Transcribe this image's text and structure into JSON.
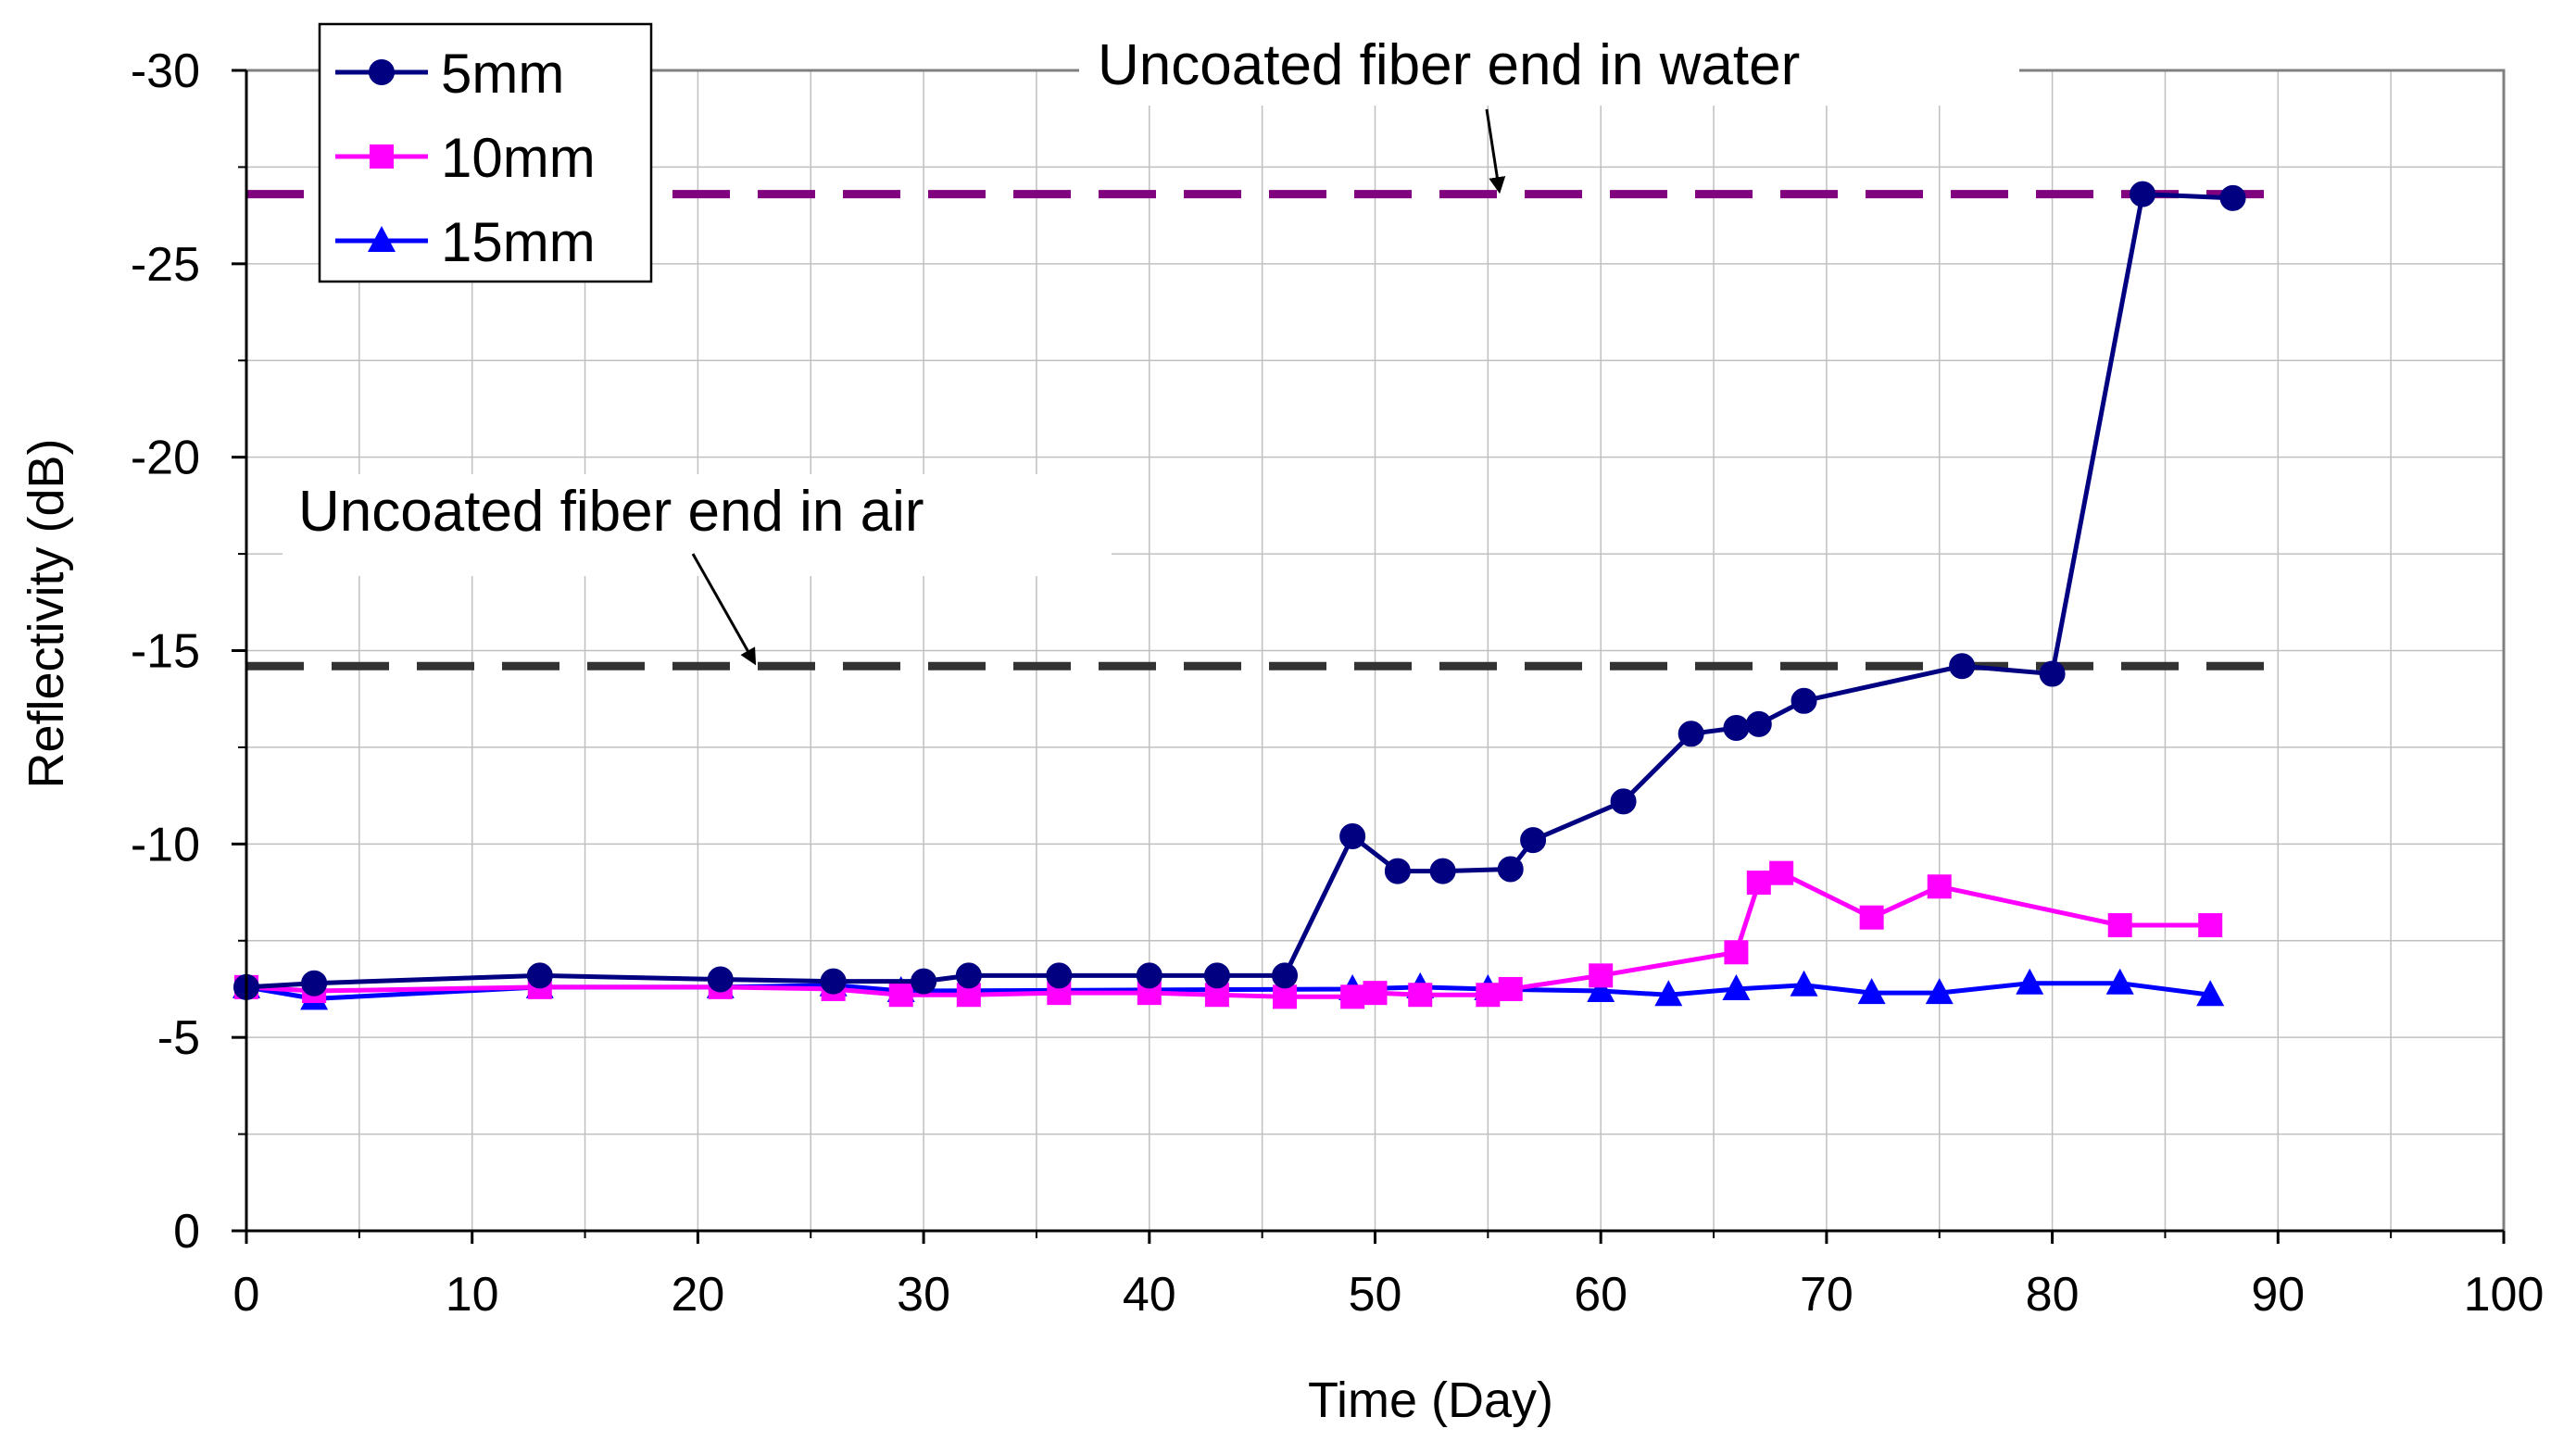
{
  "chart_data": {
    "type": "line",
    "title": "",
    "xlabel": "Time (Day)",
    "ylabel": "Reflectivity (dB)",
    "xlim": [
      0,
      100
    ],
    "ylim": [
      0,
      -30
    ],
    "y_axis_reversed": true,
    "grid": true,
    "legend_placement": "top-left",
    "x_ticks": [
      "0",
      "10",
      "20",
      "30",
      "40",
      "50",
      "60",
      "70",
      "80",
      "90",
      "100"
    ],
    "y_ticks": [
      "0",
      "-5",
      "-10",
      "-15",
      "-20",
      "-25",
      "-30"
    ],
    "series": [
      {
        "name": "5mm",
        "color": "#000080",
        "marker": "circle",
        "x": [
          0,
          3,
          13,
          21,
          26,
          30,
          32,
          36,
          40,
          43,
          46,
          49,
          51,
          53,
          56,
          57,
          61,
          64,
          66,
          67,
          69,
          76,
          80,
          84,
          88
        ],
        "y": [
          -6.3,
          -6.4,
          -6.6,
          -6.5,
          -6.45,
          -6.45,
          -6.6,
          -6.6,
          -6.6,
          -6.6,
          -6.6,
          -10.2,
          -9.3,
          -9.3,
          -9.35,
          -10.1,
          -11.1,
          -12.85,
          -13.0,
          -13.1,
          -13.7,
          -14.6,
          -14.4,
          -26.8,
          -26.7
        ]
      },
      {
        "name": "10mm",
        "color": "#ff00ff",
        "marker": "square",
        "x": [
          0,
          3,
          13,
          21,
          26,
          29,
          32,
          36,
          40,
          43,
          46,
          49,
          50,
          52,
          55,
          56,
          60,
          66,
          67,
          68,
          72,
          75,
          83,
          87
        ],
        "y": [
          -6.3,
          -6.2,
          -6.3,
          -6.3,
          -6.25,
          -6.1,
          -6.1,
          -6.15,
          -6.15,
          -6.1,
          -6.05,
          -6.05,
          -6.15,
          -6.1,
          -6.1,
          -6.25,
          -6.6,
          -7.2,
          -9.0,
          -9.25,
          -8.1,
          -8.9,
          -7.9,
          -7.9
        ]
      },
      {
        "name": "15mm",
        "color": "#0000ff",
        "marker": "triangle",
        "x": [
          0,
          3,
          13,
          21,
          26,
          29,
          49,
          52,
          55,
          60,
          63,
          66,
          69,
          72,
          75,
          79,
          83,
          87
        ],
        "y": [
          -6.3,
          -6.0,
          -6.3,
          -6.3,
          -6.35,
          -6.2,
          -6.25,
          -6.3,
          -6.25,
          -6.2,
          -6.1,
          -6.25,
          -6.35,
          -6.15,
          -6.15,
          -6.4,
          -6.4,
          -6.1
        ]
      }
    ],
    "reference_lines": [
      {
        "label": "Uncoated fiber end in water",
        "y": -26.8,
        "x_range": [
          0,
          90
        ],
        "color": "#800080",
        "style": "dashed"
      },
      {
        "label": "Uncoated fiber end in air",
        "y": -14.6,
        "x_range": [
          0,
          90
        ],
        "color": "#333333",
        "style": "dashed"
      }
    ],
    "annotations": [
      {
        "text": "Uncoated fiber end in water",
        "points_to": {
          "x": 55.5,
          "y": -26.8
        }
      },
      {
        "text": "Uncoated fiber end in air",
        "points_to": {
          "x": 22.5,
          "y": -14.6
        }
      }
    ]
  }
}
